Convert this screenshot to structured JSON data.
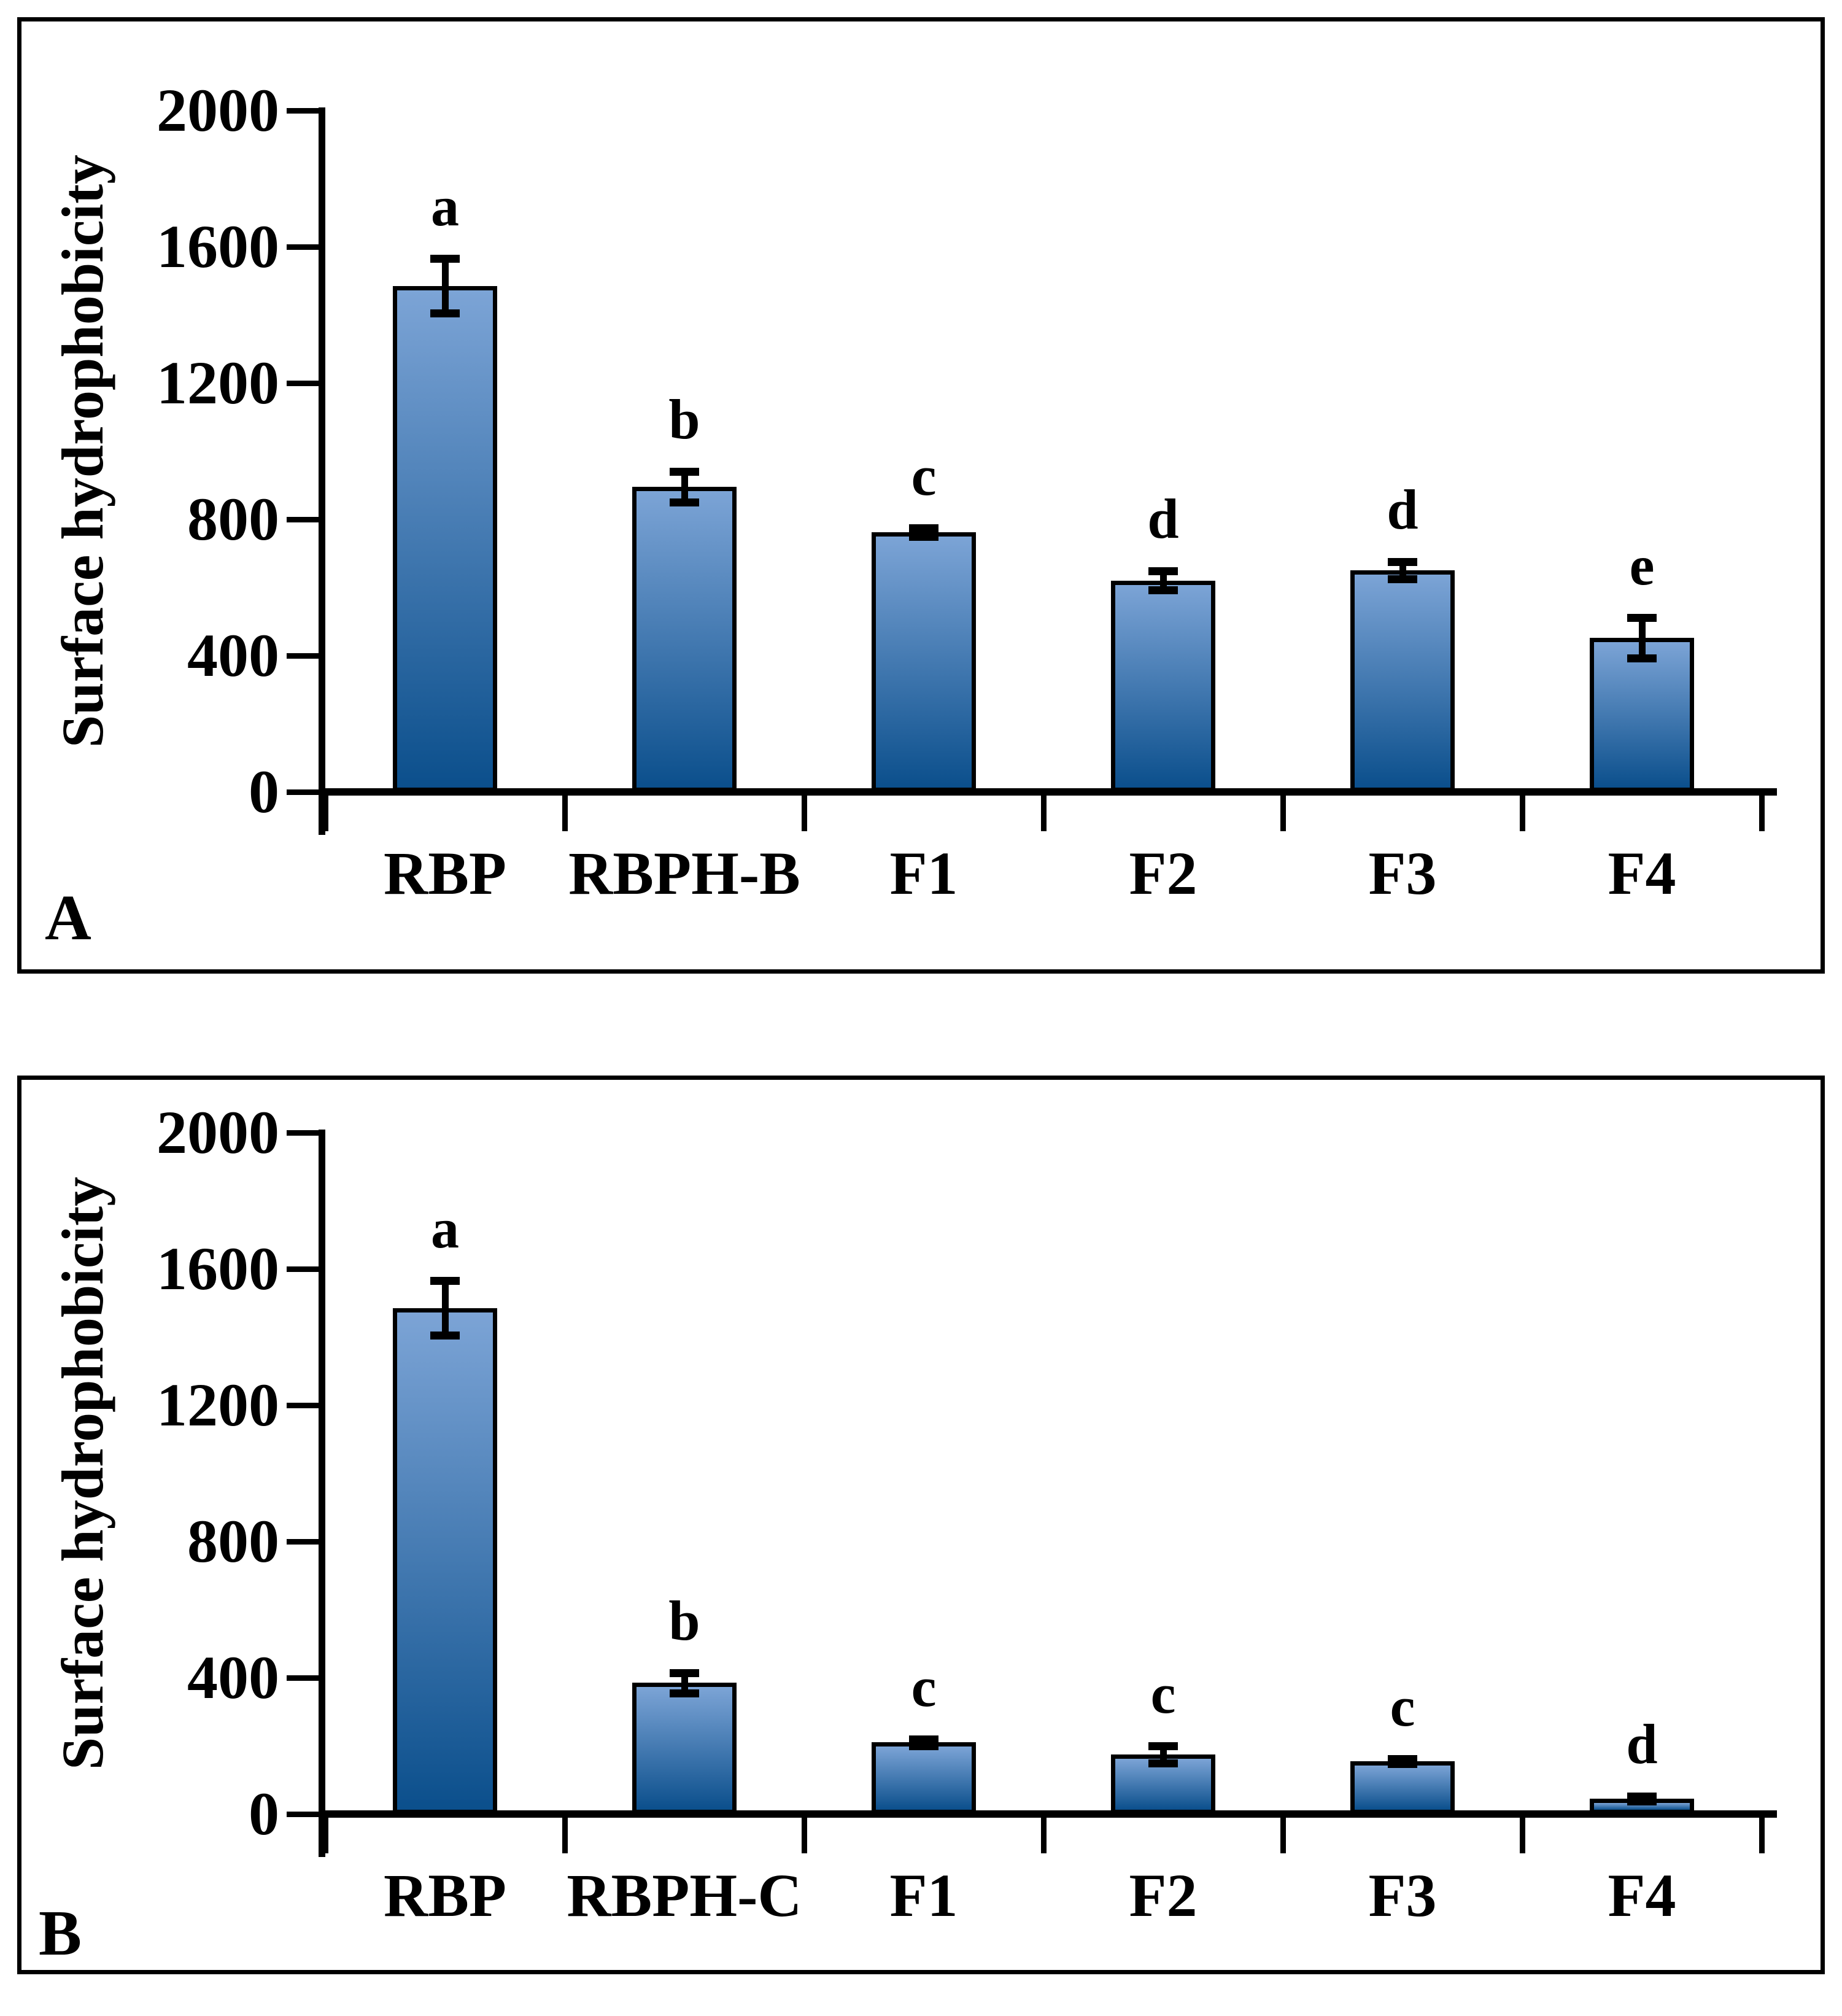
{
  "figure": {
    "background": "#ffffff"
  },
  "styles": {
    "bar_gradient_top": "#7ca4d6",
    "bar_gradient_bottom": "#0b4f8c",
    "bar_outline": "#000000",
    "axis_color": "#000000",
    "text_color": "#000000"
  },
  "chart_data": [
    {
      "type": "bar",
      "panel_label": "A",
      "ylabel": "Surface hydrophobicity",
      "xlabel": "",
      "ylim": [
        0,
        2000
      ],
      "yticks": [
        0,
        400,
        800,
        1200,
        1600,
        2000
      ],
      "grid": false,
      "legend": "none",
      "categories": [
        "RBP",
        "RBPH-B",
        "F1",
        "F2",
        "F3",
        "F4"
      ],
      "values": [
        1485,
        895,
        762,
        620,
        650,
        452
      ],
      "errors": [
        80,
        45,
        12,
        28,
        25,
        60
      ],
      "sig_letters": [
        "a",
        "b",
        "c",
        "d",
        "d",
        "e"
      ]
    },
    {
      "type": "bar",
      "panel_label": "B",
      "ylabel": "Surface hydrophobicity",
      "xlabel": "",
      "ylim": [
        0,
        2000
      ],
      "yticks": [
        0,
        400,
        800,
        1200,
        1600,
        2000
      ],
      "grid": false,
      "legend": "none",
      "categories": [
        "RBP",
        "RBPH-C",
        "F1",
        "F2",
        "F3",
        "F4"
      ],
      "values": [
        1485,
        385,
        210,
        175,
        155,
        45
      ],
      "errors": [
        80,
        30,
        10,
        25,
        8,
        8
      ],
      "sig_letters": [
        "a",
        "b",
        "c",
        "c",
        "c",
        "d"
      ]
    }
  ]
}
